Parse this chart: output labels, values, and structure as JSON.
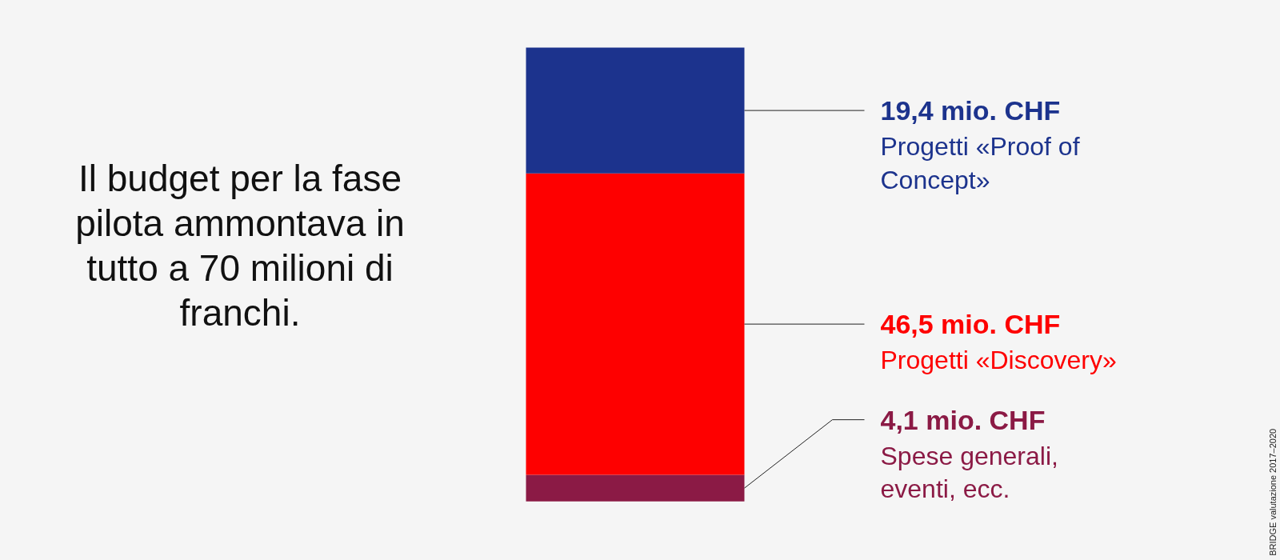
{
  "chart_data": {
    "type": "bar",
    "stacked": true,
    "title": "Il budget per la fase pilota ammontava in tutto a 70 milioni di franchi.",
    "categories": [
      null
    ],
    "series": [
      {
        "name": "Spese generali, eventi, ecc.",
        "color": "#8b1a45",
        "values": [
          4.1
        ],
        "value_labels": [
          "4,1 mio. CHF"
        ]
      },
      {
        "name": "Progetti «Discovery»",
        "color": "#fe0000",
        "values": [
          46.5
        ],
        "value_labels": [
          "46,5 mio. CHF"
        ]
      },
      {
        "name": "Progetti «Proof of Concept»",
        "color": "#1c338d",
        "values": [
          19.4
        ],
        "value_labels": [
          "19,4 mio. CHF"
        ]
      }
    ],
    "annotations": [
      "BRIDGE valutazione 2017–2020"
    ]
  }
}
